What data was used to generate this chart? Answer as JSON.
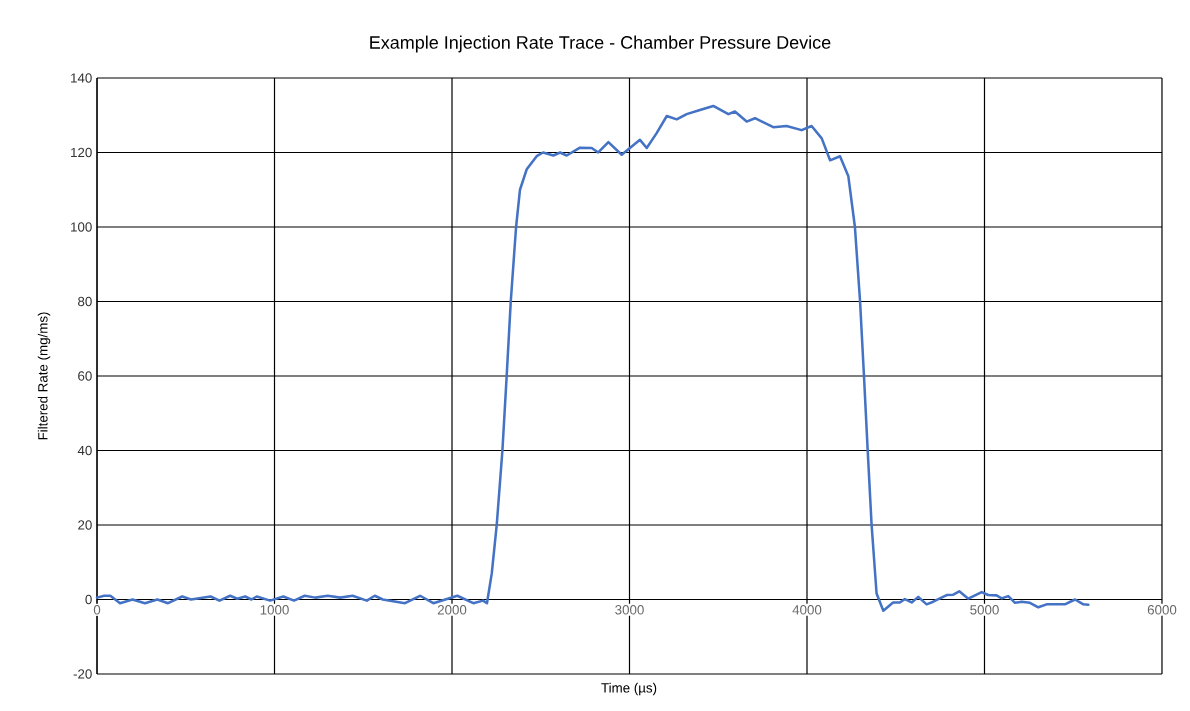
{
  "chart_data": {
    "type": "line",
    "title": "Example Injection Rate Trace - Chamber Pressure Device",
    "xlabel": "Time (µs)",
    "ylabel": "Filtered Rate (mg/ms)",
    "xlim": [
      0,
      6000
    ],
    "ylim": [
      -20,
      140
    ],
    "xticks": [
      0,
      1000,
      2000,
      3000,
      4000,
      5000,
      6000
    ],
    "yticks": [
      -20,
      0,
      20,
      40,
      60,
      80,
      100,
      120,
      140
    ],
    "grid": true,
    "series": [
      {
        "color": "#4472c4",
        "x": [
          0,
          40,
          75,
          130,
          200,
          270,
          340,
          400,
          480,
          530,
          640,
          690,
          750,
          790,
          835,
          870,
          900,
          975,
          1050,
          1110,
          1170,
          1230,
          1300,
          1370,
          1440,
          1520,
          1565,
          1610,
          1735,
          1820,
          1895,
          2030,
          2120,
          2175,
          2197,
          2224,
          2252,
          2284,
          2308,
          2331,
          2361,
          2383,
          2421,
          2477,
          2513,
          2571,
          2609,
          2646,
          2721,
          2787,
          2824,
          2881,
          2956,
          3059,
          3097,
          3153,
          3210,
          3266,
          3322,
          3397,
          3472,
          3557,
          3594,
          3660,
          3707,
          3810,
          3885,
          3970,
          4026,
          4083,
          4130,
          4186,
          4233,
          4270,
          4299,
          4321,
          4342,
          4364,
          4392,
          4430,
          4485,
          4523,
          4551,
          4590,
          4627,
          4674,
          4711,
          4787,
          4824,
          4858,
          4909,
          4984,
          5021,
          5068,
          5097,
          5134,
          5172,
          5209,
          5256,
          5303,
          5350,
          5453,
          5510,
          5557,
          5585
        ],
        "values": [
          0.5,
          1,
          1,
          -1,
          0,
          -1,
          0,
          -1,
          0.8,
          0,
          0.8,
          -0.3,
          1,
          0.2,
          0.8,
          0,
          0.8,
          -0.3,
          0.8,
          -0.3,
          1,
          0.5,
          1,
          0.5,
          1,
          -0.3,
          1,
          0,
          -1,
          1,
          -1,
          1,
          -1,
          -0.3,
          -1,
          7,
          20,
          40,
          60,
          80,
          100,
          110,
          115.5,
          119,
          120,
          119.2,
          120,
          119.2,
          121.3,
          121.2,
          120,
          122.8,
          119.4,
          123.4,
          121.2,
          125.2,
          129.8,
          128.9,
          130.3,
          131.4,
          132.5,
          130.3,
          131,
          128.3,
          129.2,
          126.8,
          127.1,
          126,
          127.1,
          123.8,
          117.9,
          119,
          113.6,
          100,
          80,
          60,
          40,
          20,
          1.6,
          -3,
          -0.8,
          -0.8,
          0.1,
          -0.8,
          0.7,
          -1.3,
          -0.6,
          1.2,
          1.3,
          2.2,
          0.2,
          2,
          1.2,
          1.1,
          0.3,
          0.9,
          -0.9,
          -0.6,
          -0.9,
          -2.1,
          -1.3,
          -1.3,
          0,
          -1.3,
          -1.4
        ]
      }
    ]
  }
}
